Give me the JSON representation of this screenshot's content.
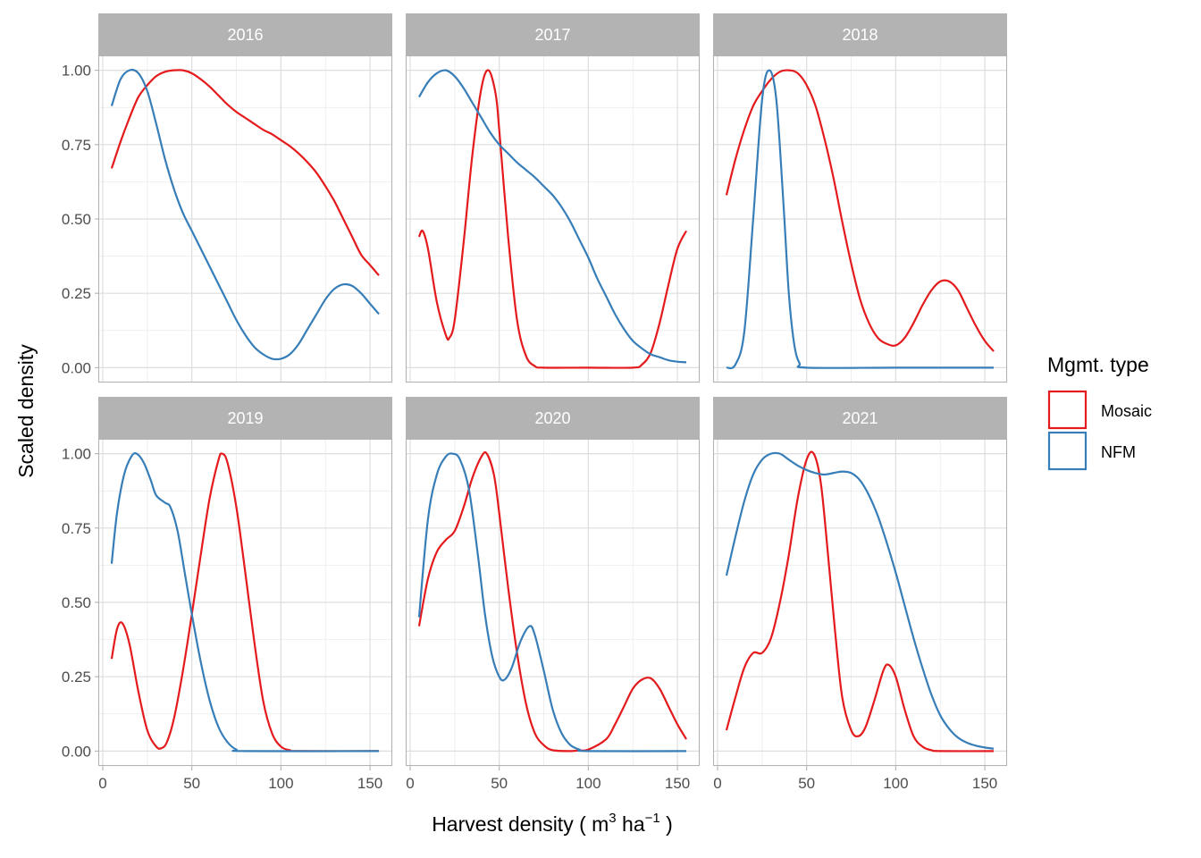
{
  "chart_data": {
    "type": "line",
    "xlabel": "Harvest density ( m3 ha-1 )",
    "xlabel_parts": {
      "base": "Harvest density ( m",
      "sup1": "3",
      "mid": " ha",
      "sup2": "−1",
      "end": " )"
    },
    "ylabel": "Scaled density",
    "xlim": [
      -2.5,
      162.5
    ],
    "ylim": [
      -0.05,
      1.05
    ],
    "x_ticks": [
      0,
      50,
      100,
      150
    ],
    "x_tick_labels": [
      "0",
      "50",
      "100",
      "150"
    ],
    "y_ticks": [
      0,
      0.25,
      0.5,
      0.75,
      1.0
    ],
    "y_tick_labels": [
      "0.00",
      "0.25",
      "0.50",
      "0.75",
      "1.00"
    ],
    "grid": true,
    "legend": {
      "title": "Mgmt. type",
      "position": "right",
      "entries": [
        {
          "label": "Mosaic",
          "color": "#e41a1c"
        },
        {
          "label": "NFM",
          "color": "#377eb8"
        }
      ]
    },
    "facets": [
      {
        "title": "2016",
        "series": [
          {
            "name": "Mosaic",
            "x": [
              5,
              10,
              15,
              20,
              25,
              30,
              35,
              40,
              45,
              50,
              55,
              60,
              65,
              70,
              75,
              80,
              85,
              90,
              95,
              100,
              105,
              110,
              115,
              120,
              125,
              130,
              135,
              140,
              145,
              150,
              155
            ],
            "y": [
              0.67,
              0.76,
              0.84,
              0.91,
              0.95,
              0.98,
              0.995,
              1.0,
              1.0,
              0.99,
              0.97,
              0.945,
              0.915,
              0.885,
              0.86,
              0.84,
              0.82,
              0.8,
              0.785,
              0.765,
              0.745,
              0.72,
              0.69,
              0.655,
              0.61,
              0.56,
              0.5,
              0.44,
              0.38,
              0.345,
              0.31
            ]
          },
          {
            "name": "NFM",
            "x": [
              5,
              10,
              15,
              20,
              25,
              30,
              35,
              40,
              45,
              50,
              55,
              60,
              65,
              70,
              75,
              80,
              85,
              90,
              95,
              100,
              105,
              110,
              115,
              120,
              125,
              130,
              135,
              140,
              145,
              150,
              155
            ],
            "y": [
              0.88,
              0.97,
              1.0,
              0.99,
              0.93,
              0.82,
              0.7,
              0.6,
              0.52,
              0.46,
              0.4,
              0.34,
              0.28,
              0.22,
              0.16,
              0.11,
              0.07,
              0.045,
              0.03,
              0.03,
              0.045,
              0.08,
              0.13,
              0.18,
              0.23,
              0.265,
              0.28,
              0.275,
              0.25,
              0.215,
              0.18
            ]
          }
        ]
      },
      {
        "title": "2017",
        "series": [
          {
            "name": "Mosaic",
            "x": [
              5,
              7,
              10,
              15,
              20,
              22,
              25,
              30,
              35,
              40,
              44,
              48,
              50,
              55,
              60,
              65,
              70,
              75,
              100,
              125,
              130,
              135,
              140,
              145,
              150,
              155
            ],
            "y": [
              0.44,
              0.46,
              0.4,
              0.22,
              0.11,
              0.1,
              0.16,
              0.42,
              0.72,
              0.94,
              1.0,
              0.92,
              0.8,
              0.44,
              0.16,
              0.04,
              0.005,
              0.0,
              0.0,
              0.0,
              0.01,
              0.05,
              0.15,
              0.28,
              0.4,
              0.46
            ]
          },
          {
            "name": "NFM",
            "x": [
              5,
              10,
              15,
              20,
              25,
              30,
              35,
              40,
              45,
              50,
              55,
              60,
              65,
              70,
              75,
              80,
              85,
              90,
              95,
              100,
              105,
              110,
              115,
              120,
              125,
              130,
              135,
              140,
              145,
              150,
              155
            ],
            "y": [
              0.91,
              0.96,
              0.99,
              1.0,
              0.98,
              0.94,
              0.89,
              0.84,
              0.79,
              0.75,
              0.72,
              0.69,
              0.665,
              0.64,
              0.61,
              0.58,
              0.54,
              0.49,
              0.43,
              0.37,
              0.3,
              0.24,
              0.18,
              0.13,
              0.09,
              0.065,
              0.045,
              0.035,
              0.025,
              0.02,
              0.018
            ]
          }
        ]
      },
      {
        "title": "2018",
        "series": [
          {
            "name": "Mosaic",
            "x": [
              5,
              10,
              15,
              20,
              25,
              30,
              35,
              40,
              45,
              50,
              55,
              60,
              65,
              70,
              75,
              80,
              85,
              90,
              95,
              100,
              105,
              110,
              115,
              120,
              125,
              130,
              135,
              140,
              145,
              150,
              155
            ],
            "y": [
              0.58,
              0.7,
              0.8,
              0.88,
              0.93,
              0.97,
              0.995,
              1.0,
              0.99,
              0.95,
              0.88,
              0.77,
              0.64,
              0.49,
              0.35,
              0.23,
              0.15,
              0.1,
              0.08,
              0.075,
              0.1,
              0.15,
              0.21,
              0.26,
              0.29,
              0.29,
              0.26,
              0.2,
              0.14,
              0.09,
              0.055
            ]
          },
          {
            "name": "NFM",
            "x": [
              5,
              10,
              15,
              20,
              25,
              29,
              33,
              37,
              40,
              43,
              46,
              50,
              100,
              155
            ],
            "y": [
              0.0,
              0.01,
              0.12,
              0.5,
              0.9,
              1.0,
              0.9,
              0.55,
              0.25,
              0.08,
              0.015,
              0.0,
              0.0,
              0.0
            ]
          }
        ]
      },
      {
        "title": "2019",
        "series": [
          {
            "name": "Mosaic",
            "x": [
              5,
              8,
              11,
              15,
              20,
              25,
              30,
              33,
              36,
              40,
              45,
              50,
              55,
              60,
              65,
              67,
              70,
              75,
              80,
              85,
              90,
              95,
              100,
              105,
              110,
              155
            ],
            "y": [
              0.31,
              0.41,
              0.43,
              0.36,
              0.2,
              0.07,
              0.015,
              0.01,
              0.03,
              0.11,
              0.27,
              0.46,
              0.66,
              0.85,
              0.98,
              1.0,
              0.97,
              0.82,
              0.6,
              0.37,
              0.17,
              0.06,
              0.015,
              0.003,
              0.0,
              0.0
            ]
          },
          {
            "name": "NFM",
            "x": [
              5,
              8,
              12,
              16,
              19,
              23,
              27,
              30,
              35,
              38,
              42,
              46,
              50,
              55,
              60,
              65,
              70,
              75,
              80,
              155
            ],
            "y": [
              0.63,
              0.8,
              0.93,
              0.99,
              1.0,
              0.97,
              0.91,
              0.86,
              0.835,
              0.82,
              0.74,
              0.6,
              0.46,
              0.3,
              0.17,
              0.08,
              0.03,
              0.005,
              0.0,
              0.0
            ]
          }
        ]
      },
      {
        "title": "2020",
        "series": [
          {
            "name": "Mosaic",
            "x": [
              5,
              10,
              15,
              20,
              25,
              30,
              35,
              40,
              43,
              47,
              50,
              55,
              60,
              65,
              70,
              75,
              80,
              90,
              95,
              100,
              110,
              115,
              120,
              125,
              130,
              135,
              140,
              145,
              150,
              155
            ],
            "y": [
              0.42,
              0.58,
              0.67,
              0.71,
              0.74,
              0.82,
              0.92,
              0.99,
              1.0,
              0.93,
              0.8,
              0.55,
              0.33,
              0.16,
              0.06,
              0.02,
              0.003,
              0.0,
              0.002,
              0.005,
              0.04,
              0.09,
              0.15,
              0.21,
              0.24,
              0.245,
              0.21,
              0.15,
              0.09,
              0.04
            ]
          },
          {
            "name": "NFM",
            "x": [
              5,
              10,
              15,
              20,
              24,
              28,
              33,
              38,
              42,
              46,
              50,
              53,
              57,
              62,
              67,
              70,
              75,
              80,
              85,
              90,
              95,
              100,
              155
            ],
            "y": [
              0.45,
              0.78,
              0.93,
              0.99,
              1.0,
              0.98,
              0.88,
              0.66,
              0.46,
              0.32,
              0.25,
              0.24,
              0.28,
              0.37,
              0.42,
              0.39,
              0.27,
              0.14,
              0.06,
              0.02,
              0.005,
              0.0,
              0.0
            ]
          }
        ]
      },
      {
        "title": "2021",
        "series": [
          {
            "name": "Mosaic",
            "x": [
              5,
              10,
              15,
              20,
              25,
              30,
              35,
              40,
              45,
              50,
              54,
              58,
              62,
              66,
              70,
              75,
              79,
              83,
              88,
              93,
              96,
              100,
              105,
              110,
              115,
              120,
              125,
              155
            ],
            "y": [
              0.07,
              0.18,
              0.28,
              0.33,
              0.33,
              0.38,
              0.5,
              0.66,
              0.85,
              0.98,
              1.0,
              0.9,
              0.66,
              0.4,
              0.18,
              0.07,
              0.05,
              0.08,
              0.17,
              0.27,
              0.29,
              0.25,
              0.14,
              0.05,
              0.015,
              0.003,
              0.0,
              0.0
            ]
          },
          {
            "name": "NFM",
            "x": [
              5,
              10,
              15,
              20,
              25,
              30,
              35,
              40,
              45,
              50,
              55,
              60,
              65,
              70,
              75,
              80,
              85,
              90,
              95,
              100,
              105,
              110,
              115,
              120,
              125,
              130,
              135,
              140,
              145,
              150,
              155
            ],
            "y": [
              0.59,
              0.72,
              0.84,
              0.93,
              0.98,
              1.0,
              1.0,
              0.98,
              0.96,
              0.945,
              0.935,
              0.93,
              0.935,
              0.94,
              0.935,
              0.91,
              0.86,
              0.79,
              0.7,
              0.6,
              0.49,
              0.38,
              0.28,
              0.19,
              0.12,
              0.075,
              0.045,
              0.028,
              0.018,
              0.012,
              0.008
            ]
          }
        ]
      }
    ]
  }
}
